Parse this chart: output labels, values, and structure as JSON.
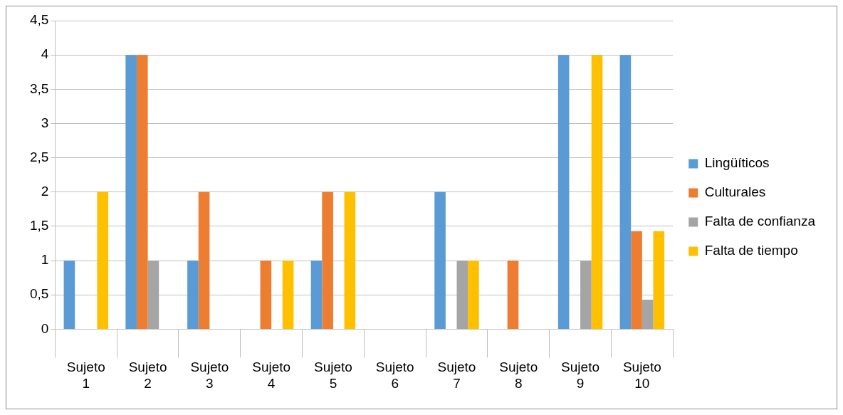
{
  "chart_data": {
    "type": "bar",
    "categories": [
      "Sujeto 1",
      "Sujeto 2",
      "Sujeto 3",
      "Sujeto 4",
      "Sujeto 5",
      "Sujeto 6",
      "Sujeto 7",
      "Sujeto 8",
      "Sujeto 9",
      "Sujeto 10"
    ],
    "series": [
      {
        "name": "Lingüíticos",
        "color": "#5b9bd5",
        "values": [
          1,
          4,
          1,
          0,
          1,
          0,
          2,
          0,
          4,
          4
        ]
      },
      {
        "name": "Culturales",
        "color": "#ed7d31",
        "values": [
          0,
          4,
          2,
          1,
          2,
          0,
          0,
          1,
          0,
          1.43
        ]
      },
      {
        "name": "Falta de confianza",
        "color": "#a5a5a5",
        "values": [
          0,
          1,
          0,
          0,
          0,
          0,
          1,
          0,
          1,
          0.43
        ]
      },
      {
        "name": "Falta de tiempo",
        "color": "#ffc000",
        "values": [
          2,
          0,
          0,
          1,
          2,
          0,
          1,
          0,
          4,
          1.43
        ]
      }
    ],
    "ylim": [
      0,
      4.5
    ],
    "yticks": [
      {
        "value": 0,
        "label": "0"
      },
      {
        "value": 0.5,
        "label": "0,5"
      },
      {
        "value": 1,
        "label": "1"
      },
      {
        "value": 1.5,
        "label": "1,5"
      },
      {
        "value": 2,
        "label": "2"
      },
      {
        "value": 2.5,
        "label": "2,5"
      },
      {
        "value": 3,
        "label": "3"
      },
      {
        "value": 3.5,
        "label": "3,5"
      },
      {
        "value": 4,
        "label": "4"
      },
      {
        "value": 4.5,
        "label": "4,5"
      }
    ],
    "grid": "y",
    "legend": "right"
  }
}
